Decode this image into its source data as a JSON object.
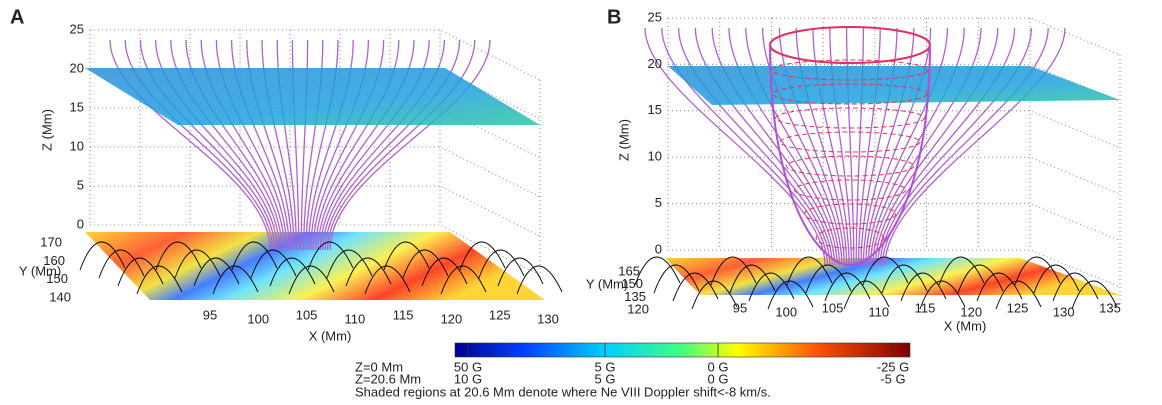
{
  "panels": [
    {
      "label": "A",
      "z_label": "Z (Mm)",
      "y_label": "Y (Mm)",
      "x_label": "X (Mm)",
      "z_ticks": [
        "0",
        "5",
        "10",
        "15",
        "20",
        "25"
      ],
      "y_ticks": [
        "170",
        "160",
        "150",
        "140"
      ],
      "x_ticks": [
        "95",
        "100",
        "105",
        "110",
        "115",
        "120",
        "125",
        "130"
      ]
    },
    {
      "label": "B",
      "z_label": "Z (Mm)",
      "y_label": "Y (Mm)",
      "x_label": "X (Mm)",
      "z_ticks": [
        "0",
        "5",
        "10",
        "15",
        "20",
        "25"
      ],
      "y_ticks": [
        "165",
        "150",
        "135",
        "120"
      ],
      "x_ticks": [
        "95",
        "100",
        "105",
        "110",
        "115",
        "120",
        "125",
        "130",
        "135"
      ]
    }
  ],
  "colorbar": {
    "rows": [
      {
        "label": "Z=0 Mm",
        "ticks": [
          "50 G",
          "5 G",
          "0 G",
          "-25 G"
        ]
      },
      {
        "label": "Z=20.6 Mm",
        "ticks": [
          "10 G",
          "5 G",
          "0 G",
          "-5 G"
        ]
      }
    ],
    "caption": "Shaded regions at 20.6 Mm denote where Ne VIII Doppler shift<-8 km/s."
  }
}
